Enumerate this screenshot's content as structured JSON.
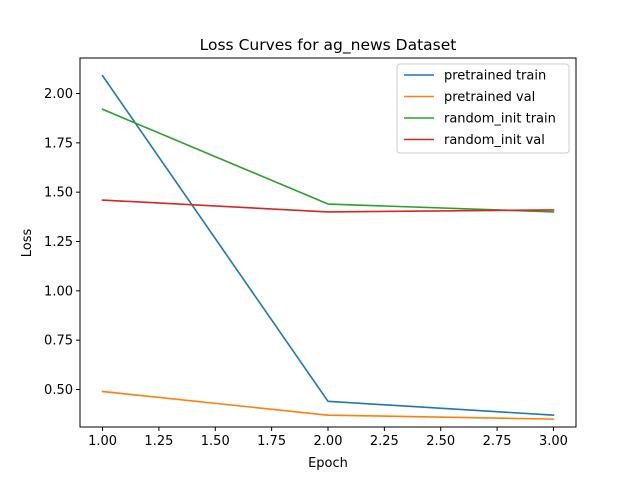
{
  "chart_data": {
    "type": "line",
    "title": "Loss Curves for ag_news Dataset",
    "xlabel": "Epoch",
    "ylabel": "Loss",
    "x": [
      1,
      2,
      3
    ],
    "xlim": [
      0.9,
      3.1
    ],
    "ylim": [
      0.31,
      2.18
    ],
    "xticks": [
      "1.00",
      "1.25",
      "1.50",
      "1.75",
      "2.00",
      "2.25",
      "2.50",
      "2.75",
      "3.00"
    ],
    "yticks": [
      "0.50",
      "0.75",
      "1.00",
      "1.25",
      "1.50",
      "1.75",
      "2.00"
    ],
    "grid": false,
    "legend_position": "upper right",
    "series": [
      {
        "name": "pretrained train",
        "color": "#1f77b4",
        "values": [
          2.09,
          0.44,
          0.37
        ]
      },
      {
        "name": "pretrained val",
        "color": "#ff7f0e",
        "values": [
          0.49,
          0.37,
          0.35
        ]
      },
      {
        "name": "random_init train",
        "color": "#2ca02c",
        "values": [
          1.92,
          1.44,
          1.4
        ]
      },
      {
        "name": "random_init val",
        "color": "#d62728",
        "values": [
          1.46,
          1.4,
          1.41
        ]
      }
    ]
  }
}
